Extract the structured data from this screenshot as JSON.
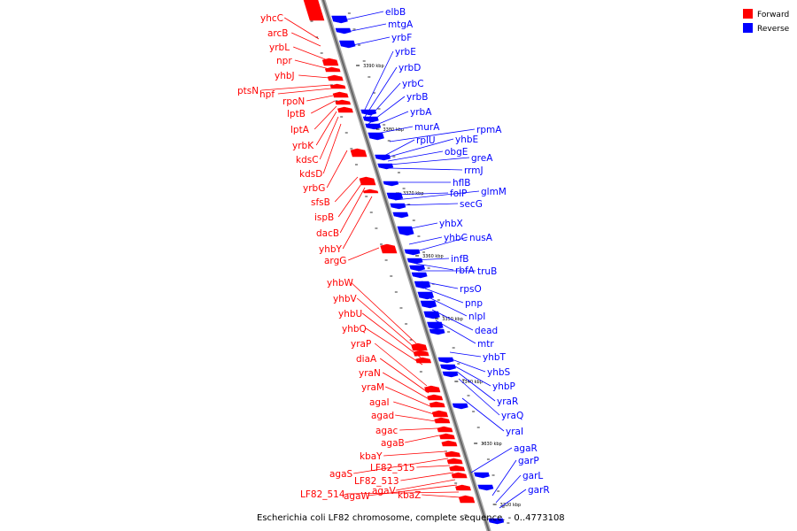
{
  "legend": {
    "forward_label": "Forward",
    "reverse_label": "Reverse",
    "forward_color": "#ff0000",
    "reverse_color": "#0000ff"
  },
  "caption": "Escherichia coli LF82 chromosome, complete sequence. - 0..4773108",
  "ticks": [
    "3390 kbp",
    "3380 kbp",
    "3370 kbp",
    "3360 kbp",
    "3350 kbp",
    "3340 kbp",
    "3330 kbp",
    "3320 kbp"
  ],
  "forward_genes": [
    "yhcC",
    "arcB",
    "yrbL",
    "npr",
    "yhbJ",
    "ptsN",
    "hpf",
    "rpoN",
    "lptB",
    "lptA",
    "yrbK",
    "kdsC",
    "kdsD",
    "yrbG",
    "sfsB",
    "ispB",
    "dacB",
    "yhbY",
    "argG",
    "yhbW",
    "yhbV",
    "yhbU",
    "yhbQ",
    "yraP",
    "diaA",
    "yraN",
    "yraM",
    "agaI",
    "agad",
    "agac",
    "agaB",
    "kbaY",
    "agaS",
    "LF82_515",
    "LF82_513",
    "agaV",
    "agaW",
    "LF82_514",
    "kbaZ"
  ],
  "reverse_genes": [
    "elbB",
    "mtgA",
    "yrbF",
    "yrbE",
    "yrbD",
    "yrbC",
    "yrbB",
    "yrbA",
    "murA",
    "rpmA",
    "rplU",
    "yhbE",
    "obgE",
    "greA",
    "rrmJ",
    "hflB",
    "folP",
    "glmM",
    "secG",
    "yhbX",
    "yhbC",
    "nusA",
    "infB",
    "rbfA",
    "truB",
    "rpsO",
    "pnp",
    "nlpI",
    "dead",
    "mtr",
    "yhbT",
    "yhbS",
    "yhbP",
    "yraR",
    "yraQ",
    "yraI",
    "agaR",
    "garP",
    "garL",
    "garR"
  ]
}
